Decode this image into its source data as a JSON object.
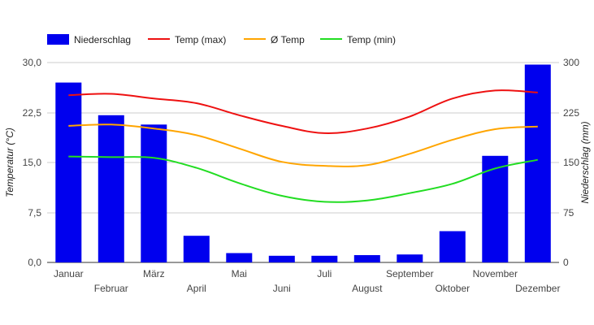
{
  "chart_data": {
    "type": "bar",
    "categories": [
      "Januar",
      "Februar",
      "März",
      "April",
      "Mai",
      "Juni",
      "Juli",
      "August",
      "September",
      "Oktober",
      "November",
      "Dezember"
    ],
    "bar_series": {
      "name": "Niederschlag",
      "axis": "right",
      "color": "#0000ee",
      "values": [
        270,
        221,
        207,
        40,
        14,
        10,
        10,
        11,
        12,
        47,
        160,
        297
      ]
    },
    "line_series": [
      {
        "name": "Temp (max)",
        "color": "#ee1111",
        "values": [
          25.1,
          25.3,
          24.6,
          23.9,
          22.1,
          20.5,
          19.4,
          20.1,
          21.9,
          24.6,
          25.8,
          25.5
        ]
      },
      {
        "name": "Ø Temp",
        "color": "#ffa500",
        "values": [
          20.5,
          20.7,
          20.1,
          19.1,
          17.1,
          15.1,
          14.5,
          14.6,
          16.3,
          18.4,
          20.0,
          20.4
        ]
      },
      {
        "name": "Temp (min)",
        "color": "#22dd22",
        "values": [
          15.9,
          15.8,
          15.7,
          14.2,
          11.9,
          10.0,
          9.1,
          9.3,
          10.4,
          11.8,
          14.1,
          15.4
        ]
      }
    ],
    "left_axis": {
      "title": "Temperatur (°C)",
      "ticks": [
        "0,0",
        "7,5",
        "15,0",
        "22,5",
        "30,0"
      ],
      "range": [
        0,
        30
      ]
    },
    "right_axis": {
      "title": "Niederschlag (mm)",
      "ticks": [
        "0",
        "75",
        "150",
        "225",
        "300"
      ],
      "range": [
        0,
        300
      ]
    },
    "legend_position": "top-left",
    "grid": true
  }
}
